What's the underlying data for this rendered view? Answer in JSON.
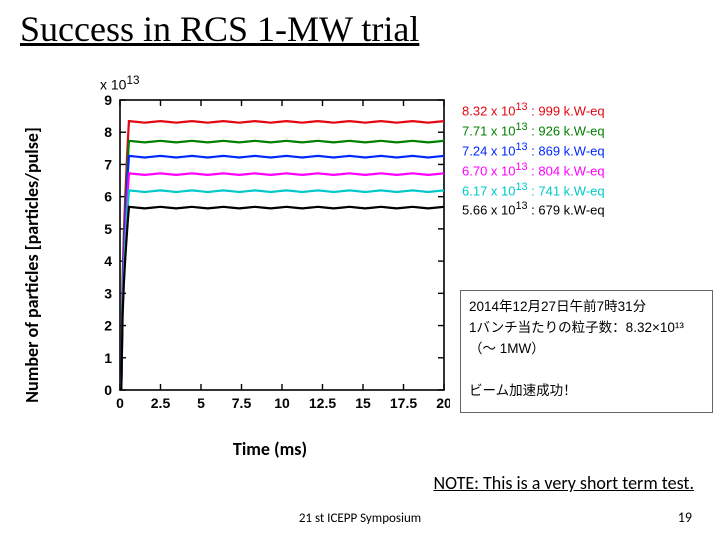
{
  "title": "Success in RCS 1-MW trial",
  "chart": {
    "type": "line",
    "y_label": "Number of particles [particles/pulse]",
    "y_multiplier": "x 10",
    "y_multiplier_exp": "13",
    "x_label": "Time (ms)",
    "xlim": [
      0,
      20
    ],
    "ylim": [
      0,
      9
    ],
    "xticks": [
      0,
      2.5,
      5,
      7.5,
      10,
      12.5,
      15,
      17.5,
      20
    ],
    "yticks": [
      0,
      1,
      2,
      3,
      4,
      5,
      6,
      7,
      8,
      9
    ],
    "axis_color": "#000000",
    "tick_label_fontsize": 14,
    "label_fontsize": 18,
    "background_color": "#ffffff",
    "line_width": 2.2,
    "series": [
      {
        "color": "#e30613",
        "plateau": 8.32,
        "legend": "8.32 x 10",
        "legend_exp": "13",
        "legend_suffix": " : 999 k.W-eq"
      },
      {
        "color": "#008000",
        "plateau": 7.71,
        "legend": "7.71 x 10",
        "legend_exp": "13",
        "legend_suffix": " : 926 k.W-eq"
      },
      {
        "color": "#0028ff",
        "plateau": 7.24,
        "legend": "7.24 x 10",
        "legend_exp": "13",
        "legend_suffix": " : 869 k.W-eq"
      },
      {
        "color": "#ff00ff",
        "plateau": 6.7,
        "legend": "6.70 x 10",
        "legend_exp": "13",
        "legend_suffix": " : 804 k.W-eq"
      },
      {
        "color": "#00c8c8",
        "plateau": 6.17,
        "legend": "6.17 x 10",
        "legend_exp": "13",
        "legend_suffix": " : 741 k.W-eq"
      },
      {
        "color": "#000000",
        "plateau": 5.66,
        "legend": "5.66 x 10",
        "legend_exp": "13",
        "legend_suffix": " : 679 k.W-eq"
      }
    ],
    "rise_time": 0.55
  },
  "info_box": {
    "lines": [
      "2014年12月27日午前7時31分",
      "1バンチ当たりの粒子数：8.32×10¹³",
      "（〜 1MW）",
      "",
      "ビーム加速成功！"
    ]
  },
  "note": "NOTE: This is a very short term test.",
  "footer": {
    "center": "21 st ICEPP Symposium",
    "page": "19"
  }
}
